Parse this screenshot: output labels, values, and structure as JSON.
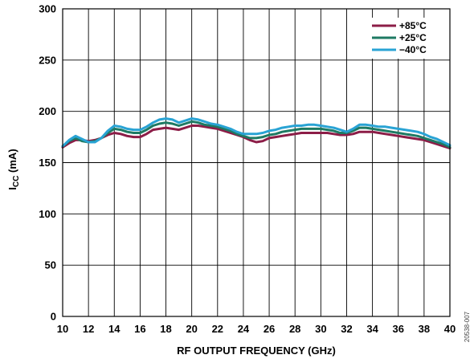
{
  "chart_data": {
    "type": "line",
    "xlabel": "RF OUTPUT FREQUENCY (GHz)",
    "ylabel_main": "I",
    "ylabel_sub": "CC",
    "ylabel_unit": " (mA)",
    "xlim": [
      10,
      40
    ],
    "ylim": [
      0,
      300
    ],
    "xticks": [
      10,
      12,
      14,
      16,
      18,
      20,
      22,
      24,
      26,
      28,
      30,
      32,
      34,
      36,
      38,
      40
    ],
    "yticks": [
      0,
      50,
      100,
      150,
      200,
      250,
      300
    ],
    "grid": true,
    "legend_position": "top-right",
    "figure_id": "20538-007",
    "series": [
      {
        "name": "+85°C",
        "color": "#8c1d47",
        "points": [
          [
            10,
            165
          ],
          [
            10.5,
            169
          ],
          [
            11,
            172
          ],
          [
            11.5,
            172
          ],
          [
            12,
            171
          ],
          [
            12.5,
            172
          ],
          [
            13,
            174
          ],
          [
            13.5,
            177
          ],
          [
            14,
            179
          ],
          [
            14.5,
            178
          ],
          [
            15,
            176
          ],
          [
            15.5,
            175
          ],
          [
            16,
            175
          ],
          [
            16.5,
            178
          ],
          [
            17,
            182
          ],
          [
            17.5,
            183
          ],
          [
            18,
            184
          ],
          [
            18.5,
            183
          ],
          [
            19,
            182
          ],
          [
            19.5,
            184
          ],
          [
            20,
            186
          ],
          [
            20.5,
            186
          ],
          [
            21,
            185
          ],
          [
            21.5,
            184
          ],
          [
            22,
            183
          ],
          [
            22.5,
            181
          ],
          [
            23,
            179
          ],
          [
            23.5,
            177
          ],
          [
            24,
            175
          ],
          [
            24.5,
            172
          ],
          [
            25,
            170
          ],
          [
            25.5,
            171
          ],
          [
            26,
            174
          ],
          [
            26.5,
            175
          ],
          [
            27,
            176
          ],
          [
            27.5,
            177
          ],
          [
            28,
            178
          ],
          [
            28.5,
            179
          ],
          [
            29,
            179
          ],
          [
            29.5,
            179
          ],
          [
            30,
            179
          ],
          [
            30.5,
            179
          ],
          [
            31,
            178
          ],
          [
            31.5,
            177
          ],
          [
            32,
            177
          ],
          [
            32.5,
            178
          ],
          [
            33,
            180
          ],
          [
            33.5,
            180
          ],
          [
            34,
            180
          ],
          [
            34.5,
            179
          ],
          [
            35,
            178
          ],
          [
            35.5,
            177
          ],
          [
            36,
            176
          ],
          [
            36.5,
            175
          ],
          [
            37,
            174
          ],
          [
            37.5,
            173
          ],
          [
            38,
            172
          ],
          [
            38.5,
            170
          ],
          [
            39,
            168
          ],
          [
            39.5,
            166
          ],
          [
            40,
            164
          ]
        ]
      },
      {
        "name": "+25°C",
        "color": "#1e7a63",
        "points": [
          [
            10,
            166
          ],
          [
            10.5,
            171
          ],
          [
            11,
            174
          ],
          [
            11.5,
            171
          ],
          [
            12,
            170
          ],
          [
            12.5,
            171
          ],
          [
            13,
            174
          ],
          [
            13.5,
            179
          ],
          [
            14,
            183
          ],
          [
            14.5,
            182
          ],
          [
            15,
            180
          ],
          [
            15.5,
            179
          ],
          [
            16,
            179
          ],
          [
            16.5,
            182
          ],
          [
            17,
            186
          ],
          [
            17.5,
            188
          ],
          [
            18,
            189
          ],
          [
            18.5,
            188
          ],
          [
            19,
            186
          ],
          [
            19.5,
            188
          ],
          [
            20,
            190
          ],
          [
            20.5,
            189
          ],
          [
            21,
            187
          ],
          [
            21.5,
            186
          ],
          [
            22,
            185
          ],
          [
            22.5,
            183
          ],
          [
            23,
            181
          ],
          [
            23.5,
            178
          ],
          [
            24,
            176
          ],
          [
            24.5,
            174
          ],
          [
            25,
            174
          ],
          [
            25.5,
            175
          ],
          [
            26,
            177
          ],
          [
            26.5,
            178
          ],
          [
            27,
            180
          ],
          [
            27.5,
            181
          ],
          [
            28,
            182
          ],
          [
            28.5,
            183
          ],
          [
            29,
            183
          ],
          [
            29.5,
            183
          ],
          [
            30,
            183
          ],
          [
            30.5,
            182
          ],
          [
            31,
            181
          ],
          [
            31.5,
            179
          ],
          [
            32,
            179
          ],
          [
            32.5,
            181
          ],
          [
            33,
            184
          ],
          [
            33.5,
            184
          ],
          [
            34,
            183
          ],
          [
            34.5,
            182
          ],
          [
            35,
            181
          ],
          [
            35.5,
            180
          ],
          [
            36,
            179
          ],
          [
            36.5,
            178
          ],
          [
            37,
            177
          ],
          [
            37.5,
            176
          ],
          [
            38,
            174
          ],
          [
            38.5,
            172
          ],
          [
            39,
            170
          ],
          [
            39.5,
            168
          ],
          [
            40,
            165
          ]
        ]
      },
      {
        "name": "−40°C",
        "color": "#29a3d4",
        "points": [
          [
            10,
            166
          ],
          [
            10.5,
            172
          ],
          [
            11,
            176
          ],
          [
            11.5,
            173
          ],
          [
            12,
            170
          ],
          [
            12.5,
            170
          ],
          [
            13,
            174
          ],
          [
            13.5,
            181
          ],
          [
            14,
            186
          ],
          [
            14.5,
            185
          ],
          [
            15,
            183
          ],
          [
            15.5,
            182
          ],
          [
            16,
            182
          ],
          [
            16.5,
            185
          ],
          [
            17,
            189
          ],
          [
            17.5,
            192
          ],
          [
            18,
            193
          ],
          [
            18.5,
            192
          ],
          [
            19,
            189
          ],
          [
            19.5,
            191
          ],
          [
            20,
            193
          ],
          [
            20.5,
            192
          ],
          [
            21,
            190
          ],
          [
            21.5,
            188
          ],
          [
            22,
            187
          ],
          [
            22.5,
            185
          ],
          [
            23,
            183
          ],
          [
            23.5,
            180
          ],
          [
            24,
            178
          ],
          [
            24.5,
            178
          ],
          [
            25,
            178
          ],
          [
            25.5,
            179
          ],
          [
            26,
            181
          ],
          [
            26.5,
            182
          ],
          [
            27,
            184
          ],
          [
            27.5,
            185
          ],
          [
            28,
            186
          ],
          [
            28.5,
            186
          ],
          [
            29,
            187
          ],
          [
            29.5,
            187
          ],
          [
            30,
            186
          ],
          [
            30.5,
            185
          ],
          [
            31,
            184
          ],
          [
            31.5,
            182
          ],
          [
            32,
            180
          ],
          [
            32.5,
            183
          ],
          [
            33,
            187
          ],
          [
            33.5,
            187
          ],
          [
            34,
            186
          ],
          [
            34.5,
            185
          ],
          [
            35,
            185
          ],
          [
            35.5,
            184
          ],
          [
            36,
            183
          ],
          [
            36.5,
            182
          ],
          [
            37,
            181
          ],
          [
            37.5,
            180
          ],
          [
            38,
            178
          ],
          [
            38.5,
            175
          ],
          [
            39,
            173
          ],
          [
            39.5,
            170
          ],
          [
            40,
            167
          ]
        ]
      }
    ]
  }
}
